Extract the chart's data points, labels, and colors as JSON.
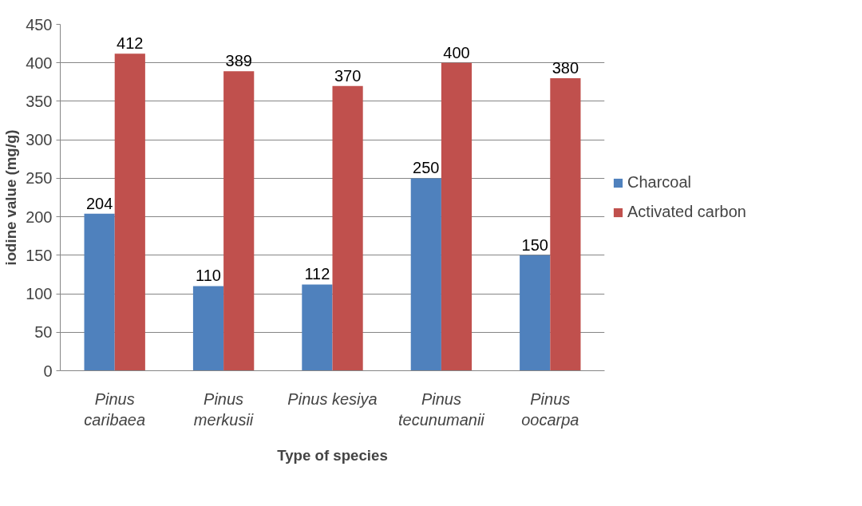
{
  "chart_data": {
    "type": "bar",
    "xlabel": "Type of species",
    "ylabel": "iodine value (mg/g)",
    "categories": [
      "Pinus caribaea",
      "Pinus merkusii",
      "Pinus kesiya",
      "Pinus tecunumanii",
      "Pinus oocarpa"
    ],
    "series": [
      {
        "name": "Charcoal",
        "color": "#4f81bd",
        "values": [
          204,
          110,
          112,
          250,
          150
        ]
      },
      {
        "name": "Activated carbon",
        "color": "#c0504d",
        "values": [
          412,
          389,
          370,
          400,
          380
        ]
      }
    ],
    "ylim": [
      0,
      450
    ],
    "yticks": [
      0,
      50,
      100,
      150,
      200,
      250,
      300,
      350,
      400,
      450
    ],
    "grid": "y",
    "legend": "right",
    "data_labels": true
  }
}
